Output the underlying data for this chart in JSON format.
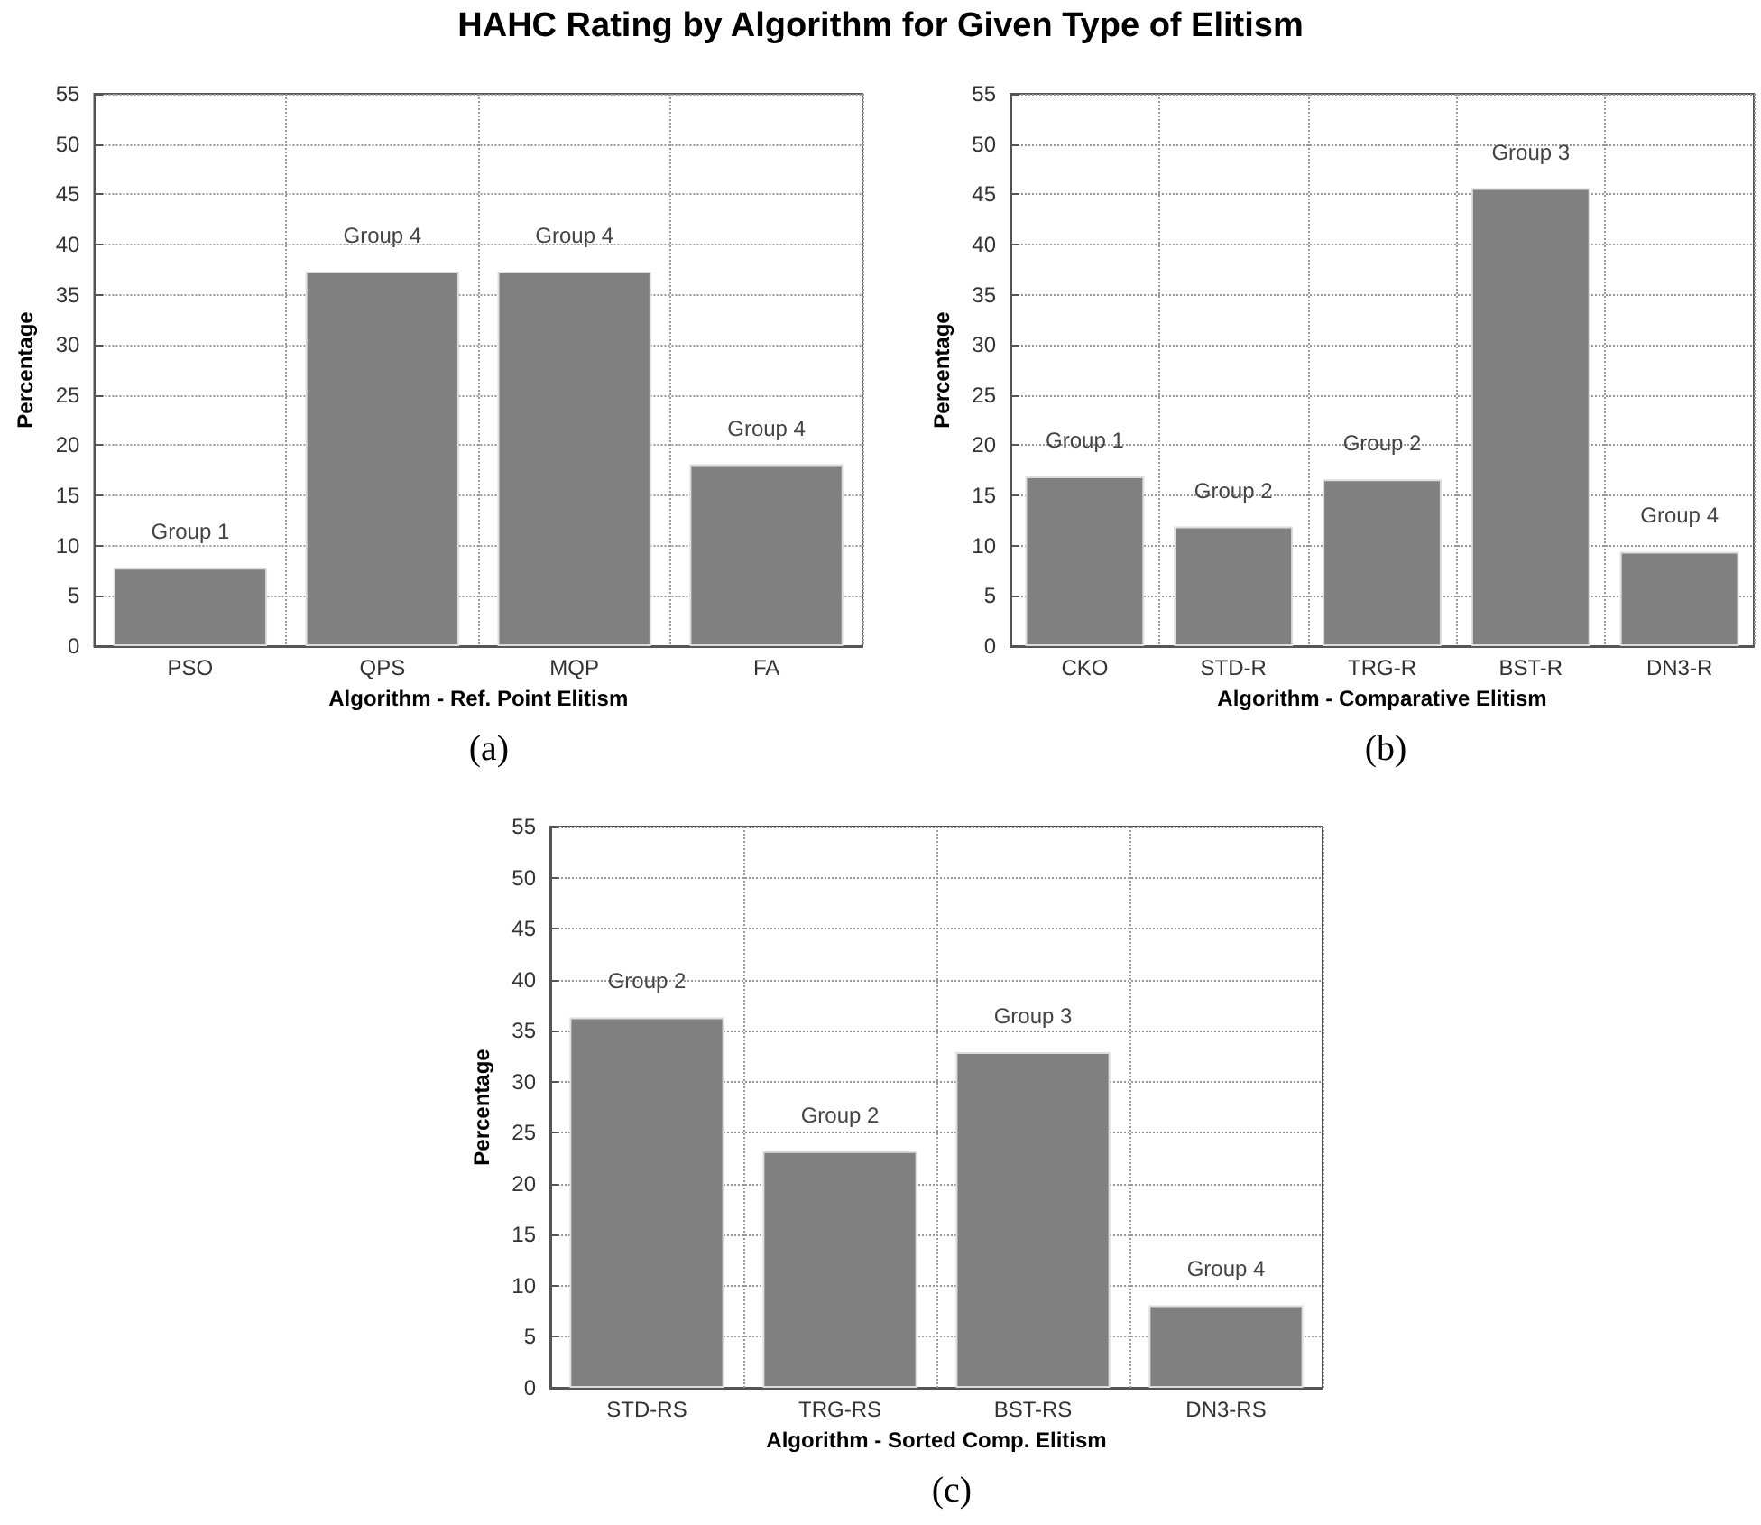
{
  "chart_data": [
    {
      "type": "bar",
      "title": "HAHC Rating by Algorithm for Given Type of Elitism",
      "xlabel": "Algorithm - Ref. Point Elitism",
      "ylabel": "Percentage",
      "categories": [
        "PSO",
        "QPS",
        "MQP",
        "FA"
      ],
      "values": [
        7.8,
        37.3,
        37.3,
        18.1
      ],
      "color": "#808080",
      "ylim": [
        0,
        55
      ],
      "yticks": [
        0,
        5,
        10,
        15,
        20,
        25,
        30,
        35,
        40,
        45,
        50,
        55
      ],
      "grid": true,
      "annotations": [
        {
          "text": "Group 1",
          "x": "PSO",
          "y": 7.8
        },
        {
          "text": "Group 4",
          "x": "QPS",
          "y": 37.3
        },
        {
          "text": "Group 4",
          "x": "MQP",
          "y": 37.3
        },
        {
          "text": "Group 4",
          "x": "FA",
          "y": 18.1
        },
        "(a)"
      ]
    },
    {
      "type": "bar",
      "xlabel": "Algorithm - Comparative Elitism",
      "ylabel": "Percentage",
      "categories": [
        "CKO",
        "STD-R",
        "TRG-R",
        "BST-R",
        "DN3-R"
      ],
      "values": [
        16.9,
        11.9,
        16.6,
        45.6,
        9.4
      ],
      "color": "#808080",
      "ylim": [
        0,
        55
      ],
      "yticks": [
        0,
        5,
        10,
        15,
        20,
        25,
        30,
        35,
        40,
        45,
        50,
        55
      ],
      "grid": true,
      "annotations": [
        {
          "text": "Group 1",
          "x": "CKO",
          "y": 16.9
        },
        {
          "text": "Group 2",
          "x": "STD-R",
          "y": 11.9
        },
        {
          "text": "Group 2",
          "x": "TRG-R",
          "y": 16.6
        },
        {
          "text": "Group 3",
          "x": "BST-R",
          "y": 45.6
        },
        {
          "text": "Group 4",
          "x": "DN3-R",
          "y": 9.4
        },
        "(b)"
      ]
    },
    {
      "type": "bar",
      "xlabel": "Algorithm - Sorted Comp. Elitism",
      "ylabel": "Percentage",
      "categories": [
        "STD-RS",
        "TRG-RS",
        "BST-RS",
        "DN3-RS"
      ],
      "values": [
        36.3,
        23.2,
        32.9,
        8.1
      ],
      "color": "#808080",
      "ylim": [
        0,
        55
      ],
      "yticks": [
        0,
        5,
        10,
        15,
        20,
        25,
        30,
        35,
        40,
        45,
        50,
        55
      ],
      "grid": true,
      "annotations": [
        {
          "text": "Group 2",
          "x": "STD-RS",
          "y": 36.3
        },
        {
          "text": "Group 2",
          "x": "TRG-RS",
          "y": 23.2
        },
        {
          "text": "Group 3",
          "x": "BST-RS",
          "y": 32.9
        },
        {
          "text": "Group 4",
          "x": "DN3-RS",
          "y": 8.1
        },
        "(c)"
      ]
    }
  ]
}
